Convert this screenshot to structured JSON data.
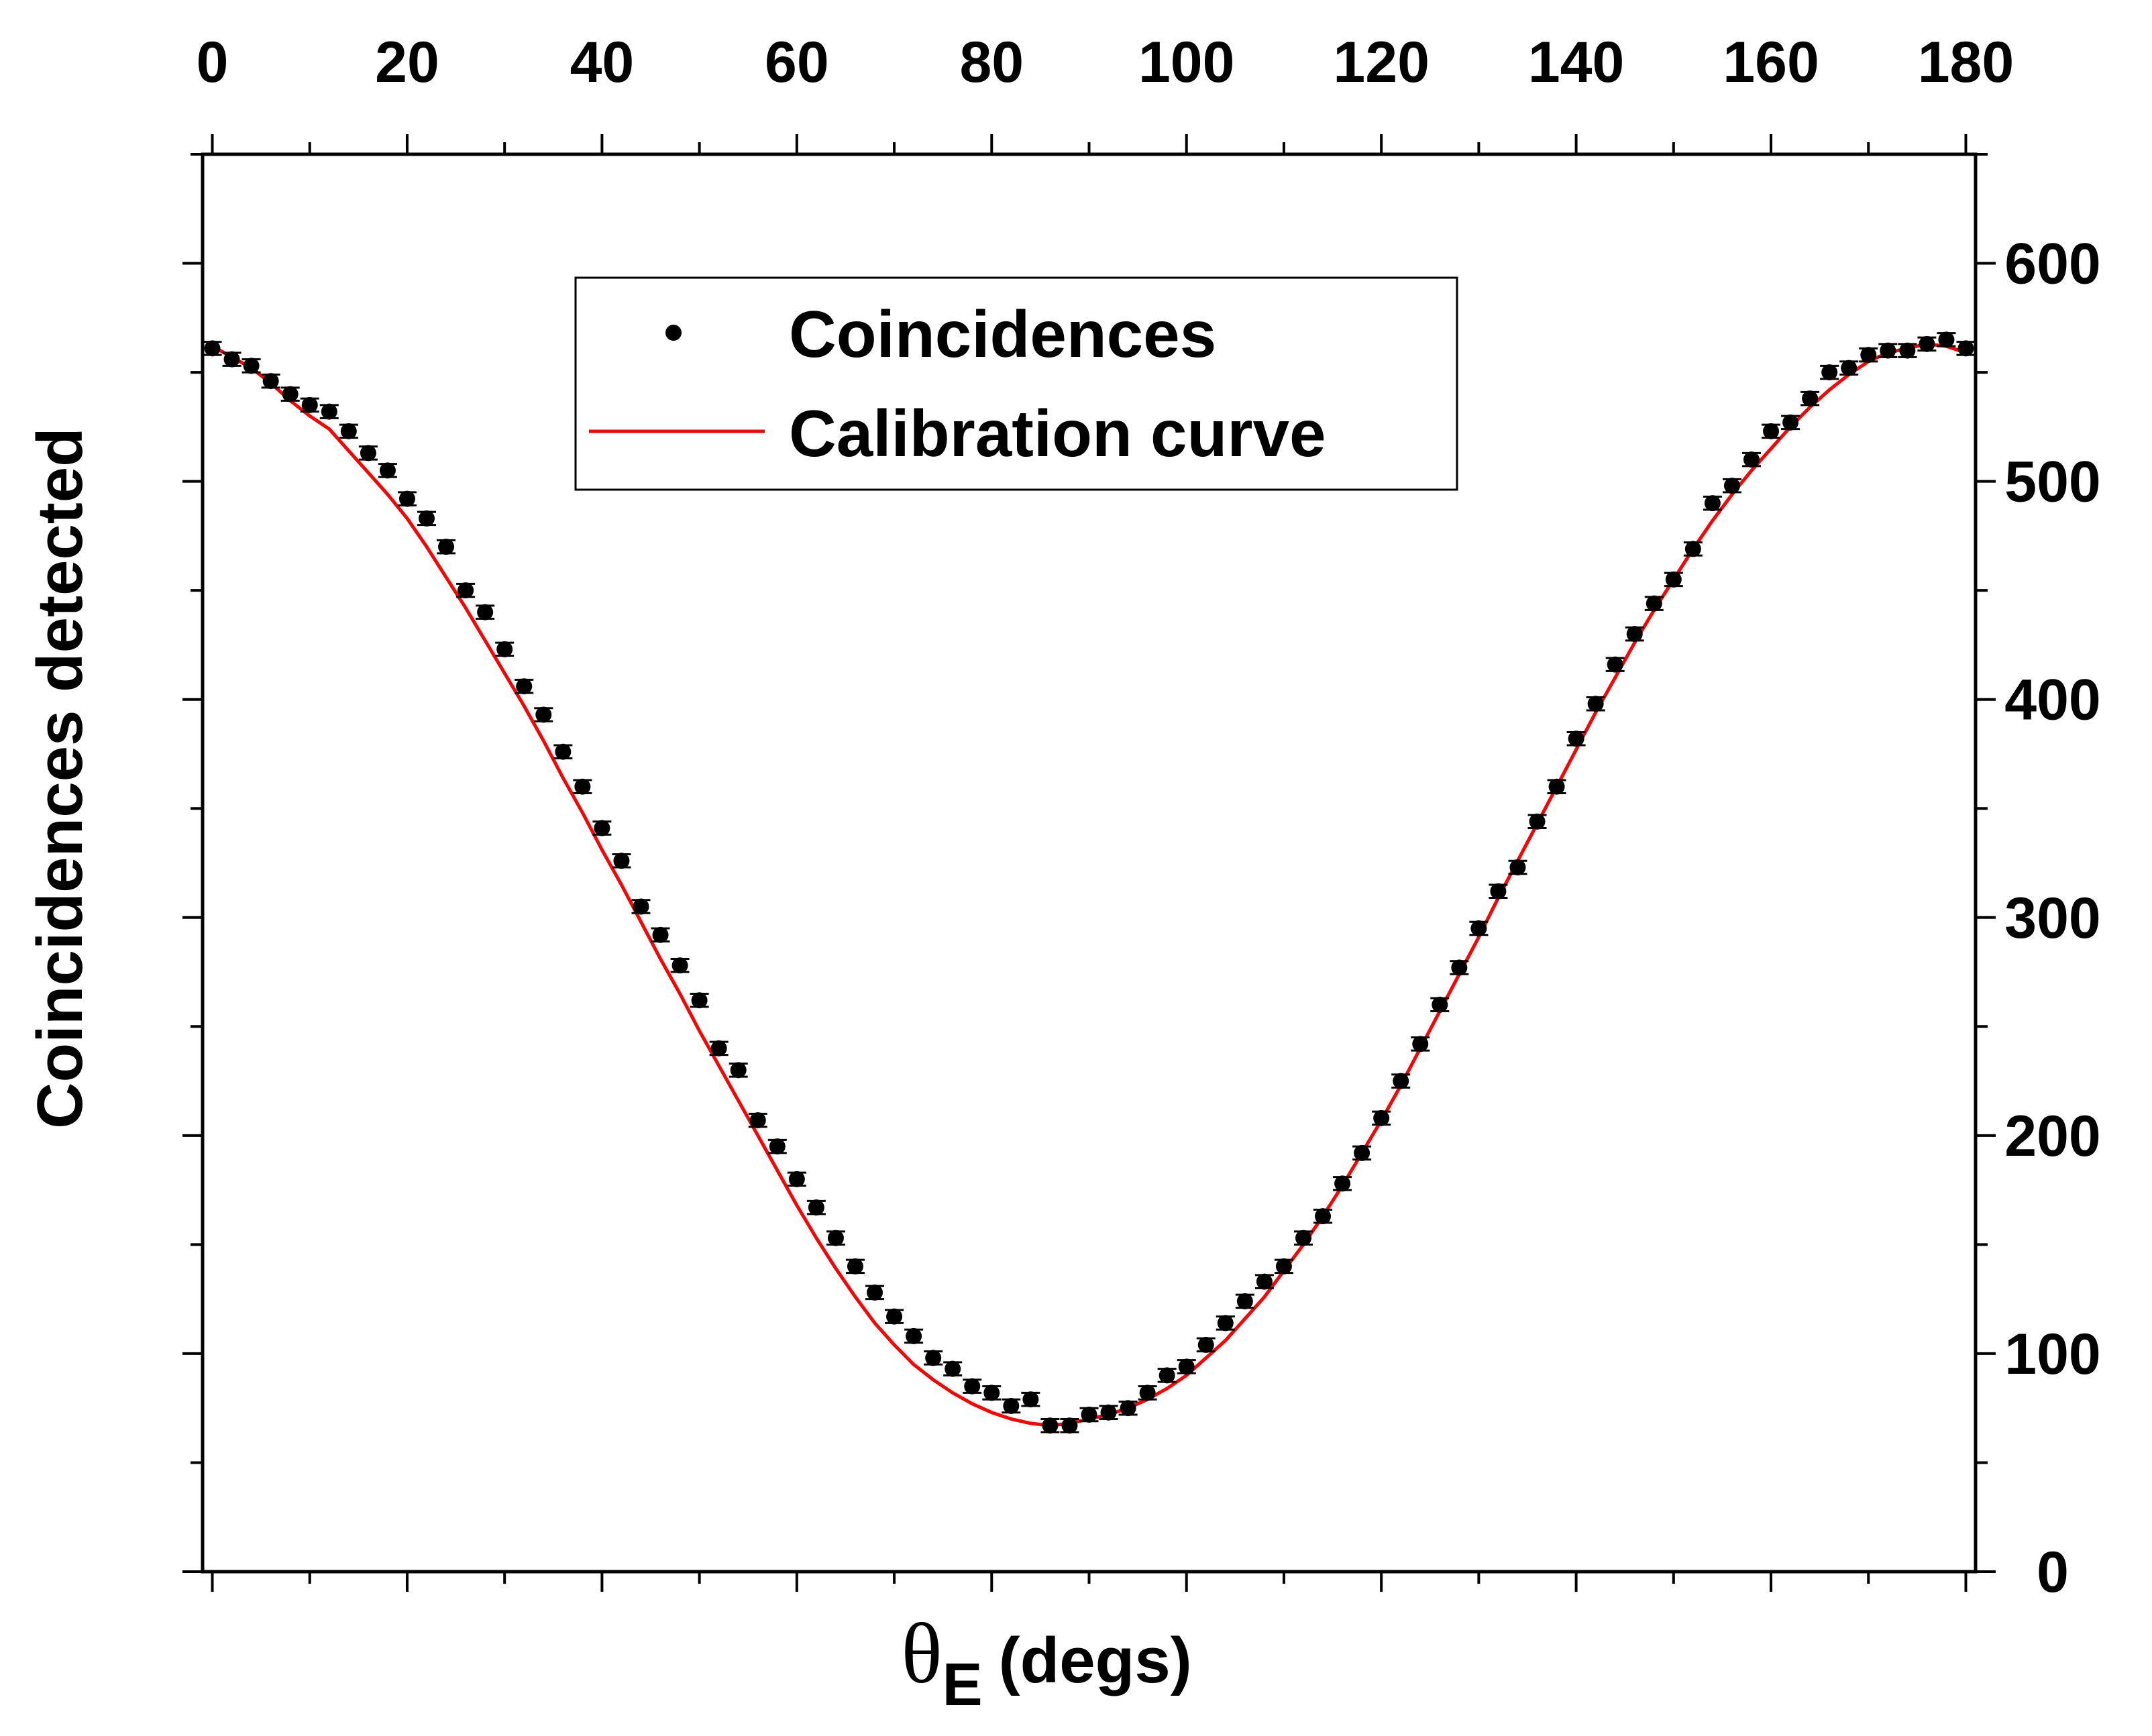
{
  "chart_data": {
    "type": "scatter",
    "title": "",
    "xlabel": "θE (degs)",
    "xlabel_symbol": "θ",
    "xlabel_subscript": "E",
    "xlabel_unit": "(degs)",
    "ylabel": "Coincidences detected",
    "xlim": [
      -1,
      181
    ],
    "ylim": [
      0,
      650
    ],
    "x_ticks": [
      0,
      20,
      40,
      60,
      80,
      100,
      120,
      140,
      160,
      180
    ],
    "x_tick_labels": [
      "0",
      "20",
      "40",
      "60",
      "80",
      "100",
      "120",
      "140",
      "160",
      "180"
    ],
    "x_tick_label_position": "top",
    "y_ticks": [
      0,
      100,
      200,
      300,
      400,
      500,
      600
    ],
    "y_tick_labels": [
      "0",
      "100",
      "200",
      "300",
      "400",
      "500",
      "600"
    ],
    "y_tick_label_position": "right",
    "legend": {
      "position": "upper-center",
      "entries": [
        {
          "label": "Coincidences",
          "marker": "dot",
          "color": "#000000"
        },
        {
          "label": "Calibration curve",
          "marker": "line",
          "color": "#ff0000"
        }
      ]
    },
    "series": [
      {
        "name": "Coincidences",
        "kind": "points",
        "color": "#000000",
        "x": [
          0,
          2,
          4,
          6,
          8,
          10,
          12,
          14,
          16,
          18,
          20,
          22,
          24,
          26,
          28,
          30,
          32,
          34,
          36,
          38,
          40,
          42,
          44,
          46,
          48,
          50,
          52,
          54,
          56,
          58,
          60,
          62,
          64,
          66,
          68,
          70,
          72,
          74,
          76,
          78,
          80,
          82,
          84,
          86,
          88,
          90,
          92,
          94,
          96,
          98,
          100,
          102,
          104,
          106,
          108,
          110,
          112,
          114,
          116,
          118,
          120,
          122,
          124,
          126,
          128,
          130,
          132,
          134,
          136,
          138,
          140,
          142,
          144,
          146,
          148,
          150,
          152,
          154,
          156,
          158,
          160,
          162,
          164,
          166,
          168,
          170,
          172,
          174,
          176,
          178,
          180
        ],
        "y": [
          561,
          556,
          553,
          546,
          540,
          535,
          532,
          523,
          513,
          505,
          492,
          483,
          470,
          450,
          440,
          423,
          406,
          393,
          376,
          360,
          341,
          326,
          305,
          292,
          278,
          262,
          240,
          230,
          207,
          195,
          180,
          167,
          153,
          140,
          128,
          117,
          108,
          98,
          93,
          85,
          82,
          76,
          79,
          67,
          67,
          72,
          73,
          75,
          82,
          90,
          94,
          104,
          114,
          124,
          133,
          140,
          153,
          163,
          178,
          192,
          208,
          225,
          242,
          260,
          277,
          295,
          312,
          323,
          344,
          360,
          382,
          398,
          416,
          430,
          444,
          455,
          469,
          490,
          498,
          510,
          523,
          527,
          538,
          550,
          552,
          558,
          560,
          560,
          563,
          565,
          561
        ],
        "y_error": 3
      },
      {
        "name": "Calibration curve",
        "kind": "line",
        "color": "#ff0000",
        "x": [
          0,
          2,
          4,
          6,
          8,
          10,
          12,
          14,
          16,
          18,
          20,
          22,
          24,
          26,
          28,
          30,
          32,
          34,
          36,
          38,
          40,
          42,
          44,
          46,
          48,
          50,
          52,
          54,
          56,
          58,
          60,
          62,
          64,
          66,
          68,
          70,
          72,
          74,
          76,
          78,
          80,
          82,
          84,
          86,
          88,
          90,
          92,
          94,
          96,
          98,
          100,
          102,
          104,
          106,
          108,
          110,
          112,
          114,
          116,
          118,
          120,
          122,
          124,
          126,
          128,
          130,
          132,
          134,
          136,
          138,
          140,
          142,
          144,
          146,
          148,
          150,
          152,
          154,
          156,
          158,
          160,
          162,
          164,
          166,
          168,
          170,
          172,
          174,
          176,
          178,
          180
        ],
        "y": [
          562,
          557,
          552,
          545,
          537,
          530,
          524,
          514,
          504,
          494,
          483,
          470,
          456,
          442,
          427,
          412,
          397,
          381,
          364,
          348,
          331,
          315,
          298,
          281,
          265,
          248,
          232,
          216,
          200,
          184,
          168,
          153,
          139,
          126,
          114,
          104,
          95,
          88,
          82,
          77,
          73,
          70,
          68,
          67,
          68,
          70,
          72,
          75,
          79,
          84,
          90,
          98,
          106,
          116,
          126,
          138,
          150,
          163,
          177,
          192,
          207,
          223,
          240,
          257,
          274,
          291,
          309,
          326,
          343,
          360,
          377,
          394,
          410,
          426,
          441,
          455,
          469,
          482,
          494,
          505,
          515,
          525,
          534,
          542,
          549,
          555,
          559,
          561,
          563,
          562,
          559
        ]
      }
    ]
  }
}
